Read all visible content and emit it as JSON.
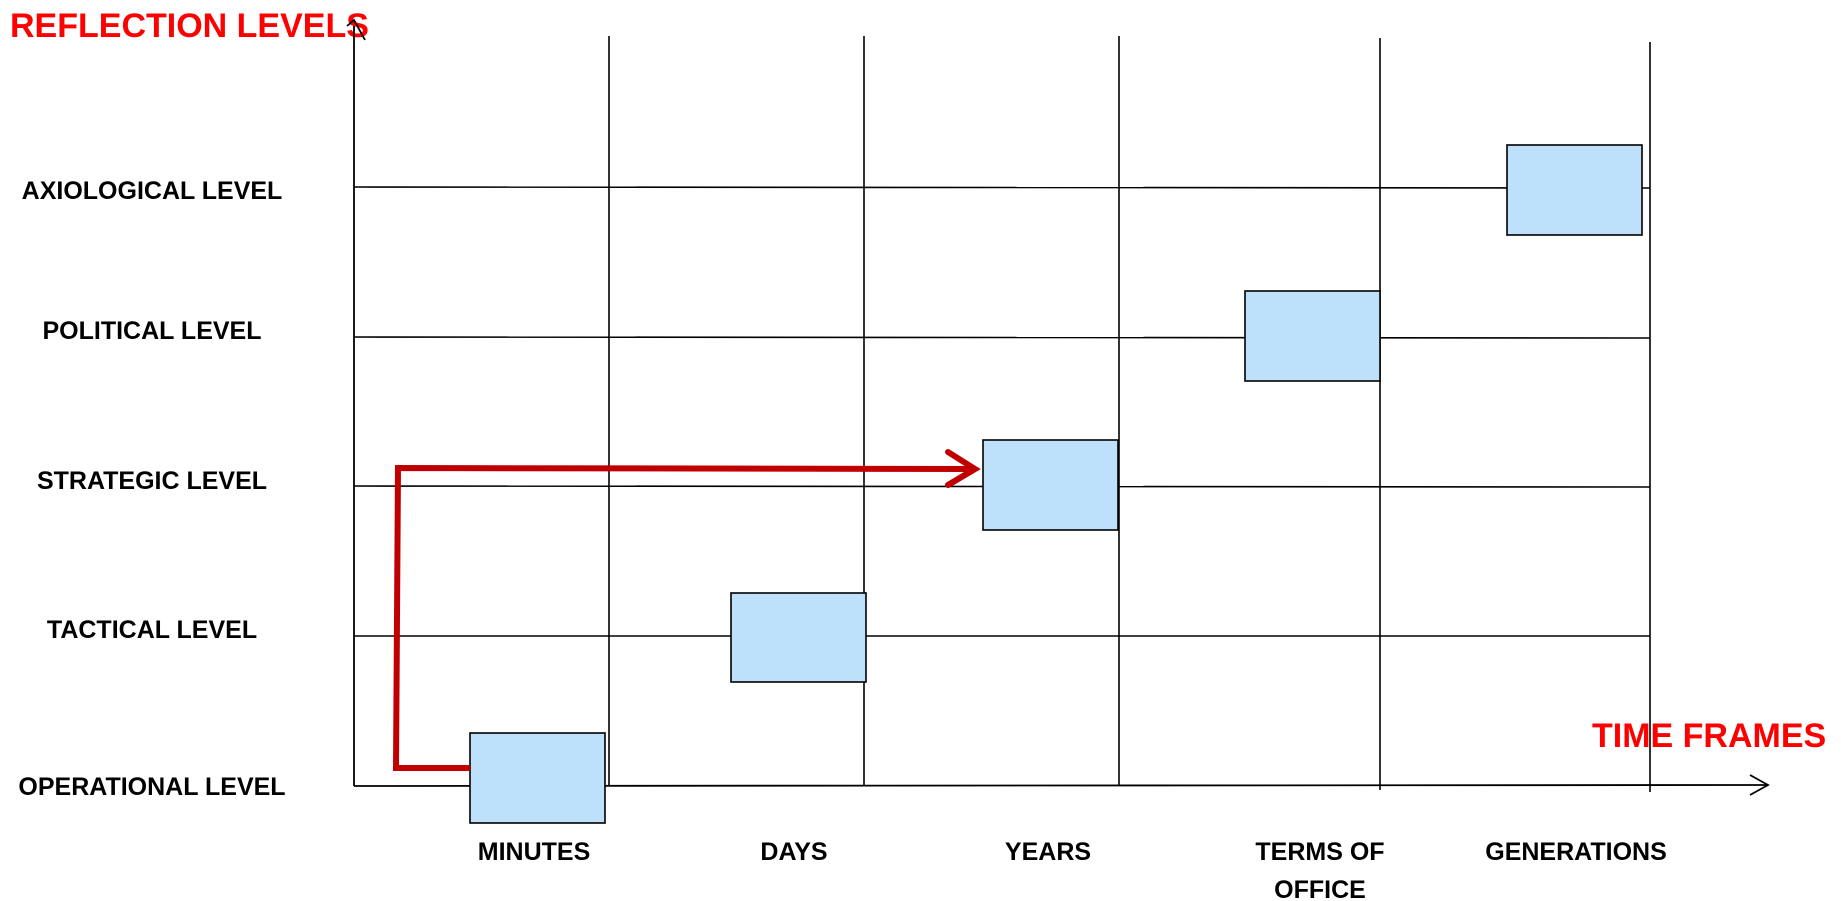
{
  "y_axis_title": "REFLECTION LEVELS",
  "x_axis_title": "TIME FRAMES",
  "levels": [
    "AXIOLOGICAL LEVEL",
    "POLITICAL LEVEL",
    "STRATEGIC LEVEL",
    "TACTICAL LEVEL",
    "OPERATIONAL LEVEL"
  ],
  "time_frames": [
    [
      "MINUTES"
    ],
    [
      "DAYS"
    ],
    [
      "YEARS"
    ],
    [
      "TERMS OF",
      "OFFICE"
    ],
    [
      "GENERATIONS"
    ]
  ],
  "box_fill": "#bde0fb",
  "arrow_color": "#c00000",
  "axis_title_color": "#ff0000"
}
